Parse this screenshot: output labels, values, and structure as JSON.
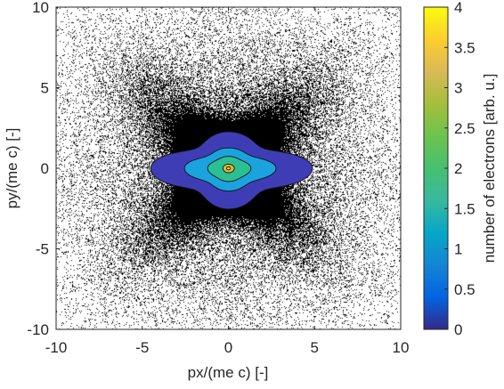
{
  "chart_data": {
    "type": "heatmap",
    "title": "",
    "xlabel": "px/(me c) [-]",
    "ylabel": "py/(me c) [-]",
    "xlim": [
      -10,
      10
    ],
    "ylim": [
      -10,
      10
    ],
    "xticks": [
      -10,
      -5,
      0,
      5,
      10
    ],
    "yticks": [
      -10,
      -5,
      0,
      5,
      10
    ],
    "colorbar": {
      "label": "number of electrons [arb. u.]",
      "range": [
        0,
        4
      ],
      "ticks": [
        "0",
        "0.5",
        "1",
        "1.5",
        "2",
        "2.5",
        "3",
        "3.5",
        "4"
      ],
      "colormap": "parula"
    },
    "density_field": {
      "center": [
        0,
        0
      ],
      "peak_value": 4,
      "background_value": 0,
      "lobes": "four-lobed (butterfly) spread along the diagonals, larger toward +px and -px",
      "contour_levels": [
        {
          "value": 0.45,
          "color": "#3f3db6"
        },
        {
          "value": 1.5,
          "color": "#1ba3dd"
        },
        {
          "value": 2.2,
          "color": "#2cbf94"
        },
        {
          "value": 2.9,
          "color": "#dcbb37"
        },
        {
          "value": 3.6,
          "color": "#f9e117"
        }
      ]
    },
    "grid": false,
    "legend": "none"
  }
}
